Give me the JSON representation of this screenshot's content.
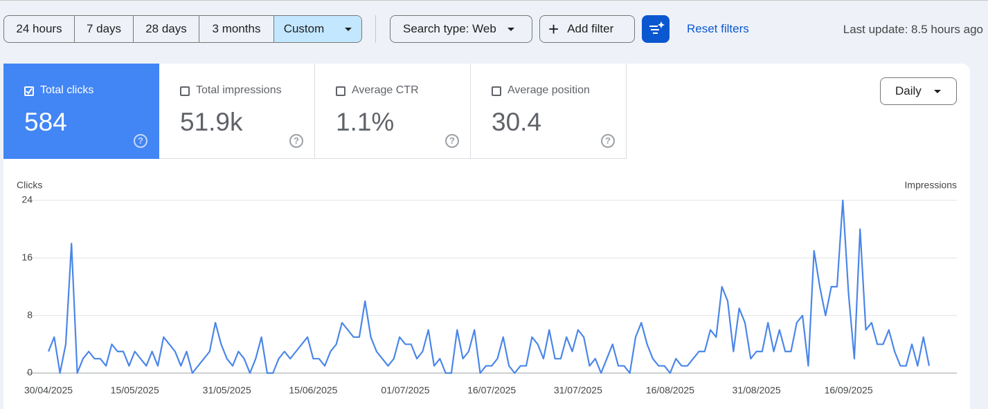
{
  "filters": {
    "ranges": [
      "24 hours",
      "7 days",
      "28 days",
      "3 months",
      "Custom"
    ],
    "search_type": "Search type: Web",
    "add_filter": "Add filter",
    "reset": "Reset filters",
    "last_update": "Last update: 8.5 hours ago"
  },
  "metrics": [
    {
      "label": "Total clicks",
      "value": "584"
    },
    {
      "label": "Total impressions",
      "value": "51.9k"
    },
    {
      "label": "Average CTR",
      "value": "1.1%"
    },
    {
      "label": "Average position",
      "value": "30.4"
    }
  ],
  "granularity": "Daily",
  "chart_data": {
    "type": "line",
    "y_label": "Clicks",
    "y2_label": "Impressions",
    "color": "#4a86e8",
    "grid": true,
    "ylim": [
      0,
      24
    ],
    "yticks": [
      0,
      8,
      16,
      24
    ],
    "categories": [
      "30/04/2025",
      null,
      null,
      null,
      null,
      null,
      null,
      null,
      null,
      null,
      null,
      null,
      null,
      null,
      null,
      "15/05/2025",
      null,
      null,
      null,
      null,
      null,
      null,
      null,
      null,
      null,
      null,
      null,
      null,
      null,
      null,
      null,
      "31/05/2025",
      null,
      null,
      null,
      null,
      null,
      null,
      null,
      null,
      null,
      null,
      null,
      null,
      null,
      null,
      "15/06/2025",
      null,
      null,
      null,
      null,
      null,
      null,
      null,
      null,
      null,
      null,
      null,
      null,
      null,
      null,
      null,
      "01/07/2025",
      null,
      null,
      null,
      null,
      null,
      null,
      null,
      null,
      null,
      null,
      null,
      null,
      null,
      null,
      "16/07/2025",
      null,
      null,
      null,
      null,
      null,
      null,
      null,
      null,
      null,
      null,
      null,
      null,
      null,
      null,
      "31/07/2025",
      null,
      null,
      null,
      null,
      null,
      null,
      null,
      null,
      null,
      null,
      null,
      null,
      null,
      null,
      null,
      "16/08/2025",
      null,
      null,
      null,
      null,
      null,
      null,
      null,
      null,
      null,
      null,
      null,
      null,
      null,
      null,
      "31/08/2025",
      null,
      null,
      null,
      null,
      null,
      null,
      null,
      null,
      null,
      null,
      null,
      null,
      null,
      null,
      null,
      "16/09/2025",
      null,
      null,
      null,
      null,
      null,
      null,
      null,
      null,
      null,
      null,
      null,
      null,
      null,
      null
    ],
    "values": [
      3,
      5,
      0,
      4,
      18,
      0,
      2,
      3,
      2,
      2,
      1,
      4,
      3,
      3,
      1,
      3,
      2,
      1,
      3,
      1,
      5,
      4,
      3,
      1,
      3,
      0,
      1,
      2,
      3,
      7,
      4,
      2,
      1,
      3,
      2,
      0,
      2,
      5,
      0,
      0,
      2,
      3,
      2,
      3,
      4,
      5,
      2,
      2,
      1,
      3,
      4,
      7,
      6,
      5,
      5,
      10,
      5,
      3,
      2,
      1,
      2,
      5,
      4,
      4,
      2,
      3,
      6,
      1,
      2,
      0,
      0,
      6,
      2,
      3,
      6,
      0,
      1,
      1,
      2,
      5,
      1,
      0,
      1,
      1,
      5,
      4,
      2,
      6,
      2,
      2,
      5,
      3,
      6,
      5,
      1,
      2,
      0,
      2,
      4,
      1,
      1,
      0,
      5,
      7,
      4,
      2,
      1,
      1,
      0,
      2,
      1,
      1,
      2,
      3,
      3,
      6,
      5,
      12,
      10,
      3,
      9,
      7,
      2,
      3,
      3,
      7,
      3,
      6,
      3,
      3,
      7,
      8,
      1,
      17,
      12,
      8,
      12,
      12,
      24,
      11,
      2,
      20,
      6,
      7,
      4,
      4,
      6,
      3,
      1,
      1,
      4,
      1,
      5,
      1
    ]
  }
}
